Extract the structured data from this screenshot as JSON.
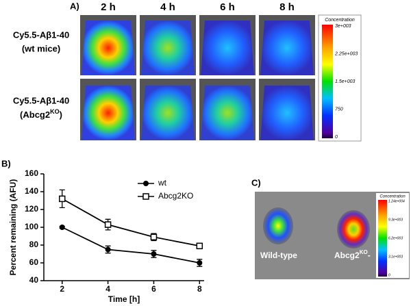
{
  "panel_a": {
    "label": "A)",
    "columns": [
      "2 h",
      "4 h",
      "6 h",
      "8 h"
    ],
    "rows": [
      {
        "line1": "Cy5.5-Aβ1-40",
        "line2": "(wt mice)"
      },
      {
        "line1": "Cy5.5-Aβ1-40",
        "line2": "(Abcg2",
        "sup": "KO",
        "end": ")"
      }
    ],
    "colorbar": {
      "title": "Concentration",
      "ticks": [
        "3e+003",
        "2.25e+003",
        "1.5e+003",
        "750",
        "0"
      ]
    }
  },
  "chart_data": {
    "type": "line",
    "panel_label": "B)",
    "x_label": "Time [h]",
    "y_label": "Percent remaining (AFU)",
    "x": [
      2,
      4,
      6,
      8
    ],
    "xlim": [
      1.2,
      8.2
    ],
    "xticks": [
      2,
      4,
      6,
      8
    ],
    "ylim": [
      40,
      160
    ],
    "yticks": [
      40,
      60,
      80,
      100,
      120,
      140,
      160
    ],
    "legend": "top-right",
    "series": [
      {
        "name": "wt",
        "color": "#000000",
        "marker": "filled-circle",
        "values": [
          100,
          75,
          70,
          60
        ],
        "errors": [
          1,
          4,
          4,
          4
        ]
      },
      {
        "name": "Abcg2KO",
        "color": "#000000",
        "marker": "open-square",
        "values": [
          132,
          103,
          89,
          79
        ],
        "errors": [
          10,
          6,
          4,
          2
        ]
      }
    ]
  },
  "panel_c": {
    "label": "C)",
    "left_label": "Wild-type",
    "right_label": {
      "text": "Abcg2",
      "sup": "KO",
      "end": "-"
    },
    "colorbar": {
      "title": "Concentration",
      "ticks": [
        "1.24e+004",
        "9.3e+003",
        "6.2e+003",
        "3.1e+003",
        "0"
      ]
    }
  }
}
